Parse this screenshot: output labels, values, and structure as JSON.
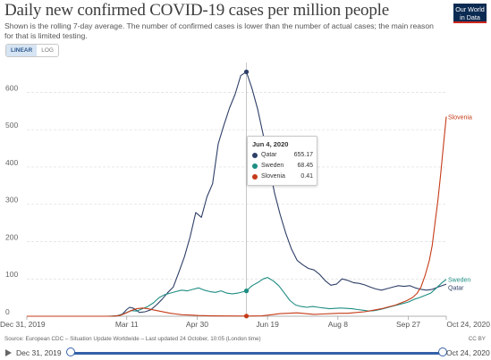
{
  "header": {
    "title": "Daily new confirmed COVID-19 cases per million people",
    "subtitle": "Shown is the rolling 7-day average. The number of confirmed cases is lower than the number of actual cases; the main reason for that is limited testing.",
    "logo_line1": "Our World",
    "logo_line2": "in Data"
  },
  "scale_toggle": {
    "linear": "LINEAR",
    "log": "LOG",
    "selected": "LINEAR"
  },
  "tooltip": {
    "date": "Jun 4, 2020",
    "rows": [
      {
        "name": "Qatar",
        "value": "655.17",
        "color": "#2e3f67"
      },
      {
        "name": "Sweden",
        "value": "68.45",
        "color": "#1d8d82"
      },
      {
        "name": "Slovenia",
        "value": "0.41",
        "color": "#c53b18"
      }
    ]
  },
  "footer": {
    "source": "Source: European CDC – Situation Update Worldwide – Last updated 24 October, 10:05 (London time)",
    "license": "CC BY"
  },
  "timeline": {
    "start_label": "Dec 31, 2019",
    "end_label": "Oct 24, 2020"
  },
  "chart_data": {
    "type": "line",
    "y_ticks": [
      0,
      100,
      200,
      300,
      400,
      500,
      600
    ],
    "ylim": [
      0,
      680
    ],
    "xlim": [
      "2019-12-31",
      "2020-10-24"
    ],
    "x_ticks": [
      {
        "date": "2019-12-31",
        "label": "Dec 31, 2019"
      },
      {
        "date": "2020-03-11",
        "label": "Mar 11"
      },
      {
        "date": "2020-04-30",
        "label": "Apr 30"
      },
      {
        "date": "2020-06-19",
        "label": "Jun 19"
      },
      {
        "date": "2020-08-08",
        "label": "Aug 8"
      },
      {
        "date": "2020-09-27",
        "label": "Sep 27"
      },
      {
        "date": "2020-10-24",
        "label": "Oct 24, 2020"
      }
    ],
    "grid": "horizontal-dashed",
    "highlight_date": "2020-06-04",
    "series": [
      {
        "name": "Qatar",
        "color": "#2e3f67",
        "end_label": "Qatar",
        "points": [
          [
            "2019-12-31",
            0
          ],
          [
            "2020-02-29",
            0
          ],
          [
            "2020-03-04",
            1
          ],
          [
            "2020-03-08",
            6
          ],
          [
            "2020-03-11",
            18
          ],
          [
            "2020-03-13",
            24
          ],
          [
            "2020-03-16",
            21
          ],
          [
            "2020-03-20",
            10
          ],
          [
            "2020-03-24",
            12
          ],
          [
            "2020-03-28",
            17
          ],
          [
            "2020-04-01",
            30
          ],
          [
            "2020-04-05",
            45
          ],
          [
            "2020-04-09",
            63
          ],
          [
            "2020-04-13",
            78
          ],
          [
            "2020-04-17",
            118
          ],
          [
            "2020-04-21",
            160
          ],
          [
            "2020-04-25",
            213
          ],
          [
            "2020-04-29",
            278
          ],
          [
            "2020-05-03",
            265
          ],
          [
            "2020-05-07",
            320
          ],
          [
            "2020-05-11",
            355
          ],
          [
            "2020-05-15",
            462
          ],
          [
            "2020-05-19",
            512
          ],
          [
            "2020-05-23",
            558
          ],
          [
            "2020-05-27",
            595
          ],
          [
            "2020-05-31",
            645
          ],
          [
            "2020-06-04",
            655
          ],
          [
            "2020-06-08",
            610
          ],
          [
            "2020-06-12",
            555
          ],
          [
            "2020-06-16",
            485
          ],
          [
            "2020-06-20",
            405
          ],
          [
            "2020-06-24",
            330
          ],
          [
            "2020-06-28",
            272
          ],
          [
            "2020-07-02",
            222
          ],
          [
            "2020-07-06",
            180
          ],
          [
            "2020-07-10",
            150
          ],
          [
            "2020-07-14",
            138
          ],
          [
            "2020-07-18",
            128
          ],
          [
            "2020-07-22",
            124
          ],
          [
            "2020-07-26",
            112
          ],
          [
            "2020-07-30",
            95
          ],
          [
            "2020-08-03",
            83
          ],
          [
            "2020-08-07",
            86
          ],
          [
            "2020-08-11",
            100
          ],
          [
            "2020-08-15",
            96
          ],
          [
            "2020-08-19",
            90
          ],
          [
            "2020-08-23",
            88
          ],
          [
            "2020-08-27",
            84
          ],
          [
            "2020-08-31",
            78
          ],
          [
            "2020-09-04",
            73
          ],
          [
            "2020-09-08",
            70
          ],
          [
            "2020-09-12",
            74
          ],
          [
            "2020-09-16",
            78
          ],
          [
            "2020-09-20",
            82
          ],
          [
            "2020-09-24",
            80
          ],
          [
            "2020-09-28",
            82
          ],
          [
            "2020-10-02",
            76
          ],
          [
            "2020-10-06",
            72
          ],
          [
            "2020-10-10",
            70
          ],
          [
            "2020-10-14",
            72
          ],
          [
            "2020-10-18",
            78
          ],
          [
            "2020-10-24",
            86
          ]
        ]
      },
      {
        "name": "Sweden",
        "color": "#1d8d82",
        "end_label": "Sweden",
        "points": [
          [
            "2019-12-31",
            0
          ],
          [
            "2020-02-26",
            0
          ],
          [
            "2020-03-04",
            1
          ],
          [
            "2020-03-08",
            5
          ],
          [
            "2020-03-11",
            10
          ],
          [
            "2020-03-14",
            15
          ],
          [
            "2020-03-18",
            14
          ],
          [
            "2020-03-22",
            20
          ],
          [
            "2020-03-26",
            26
          ],
          [
            "2020-03-30",
            36
          ],
          [
            "2020-04-03",
            50
          ],
          [
            "2020-04-07",
            58
          ],
          [
            "2020-04-11",
            62
          ],
          [
            "2020-04-15",
            66
          ],
          [
            "2020-04-19",
            70
          ],
          [
            "2020-04-23",
            68
          ],
          [
            "2020-04-27",
            72
          ],
          [
            "2020-05-01",
            76
          ],
          [
            "2020-05-05",
            70
          ],
          [
            "2020-05-09",
            66
          ],
          [
            "2020-05-13",
            64
          ],
          [
            "2020-05-17",
            68
          ],
          [
            "2020-05-21",
            62
          ],
          [
            "2020-05-25",
            60
          ],
          [
            "2020-05-29",
            62
          ],
          [
            "2020-06-04",
            68
          ],
          [
            "2020-06-08",
            82
          ],
          [
            "2020-06-12",
            90
          ],
          [
            "2020-06-16",
            100
          ],
          [
            "2020-06-19",
            104
          ],
          [
            "2020-06-23",
            95
          ],
          [
            "2020-06-27",
            82
          ],
          [
            "2020-07-01",
            62
          ],
          [
            "2020-07-05",
            42
          ],
          [
            "2020-07-09",
            30
          ],
          [
            "2020-07-13",
            26
          ],
          [
            "2020-07-17",
            24
          ],
          [
            "2020-07-21",
            26
          ],
          [
            "2020-07-25",
            24
          ],
          [
            "2020-07-29",
            22
          ],
          [
            "2020-08-02",
            20
          ],
          [
            "2020-08-06",
            21
          ],
          [
            "2020-08-10",
            22
          ],
          [
            "2020-08-14",
            21
          ],
          [
            "2020-08-18",
            20
          ],
          [
            "2020-08-22",
            18
          ],
          [
            "2020-08-26",
            16
          ],
          [
            "2020-08-30",
            14
          ],
          [
            "2020-09-03",
            15
          ],
          [
            "2020-09-07",
            18
          ],
          [
            "2020-09-11",
            22
          ],
          [
            "2020-09-15",
            26
          ],
          [
            "2020-09-19",
            30
          ],
          [
            "2020-09-23",
            34
          ],
          [
            "2020-09-27",
            38
          ],
          [
            "2020-10-01",
            45
          ],
          [
            "2020-10-05",
            50
          ],
          [
            "2020-10-09",
            56
          ],
          [
            "2020-10-13",
            62
          ],
          [
            "2020-10-17",
            76
          ],
          [
            "2020-10-21",
            90
          ],
          [
            "2020-10-24",
            99
          ]
        ]
      },
      {
        "name": "Slovenia",
        "color": "#c53b18",
        "end_label": "Slovenia",
        "points": [
          [
            "2019-12-31",
            0
          ],
          [
            "2020-03-01",
            0
          ],
          [
            "2020-03-06",
            2
          ],
          [
            "2020-03-10",
            8
          ],
          [
            "2020-03-14",
            15
          ],
          [
            "2020-03-18",
            20
          ],
          [
            "2020-03-22",
            22
          ],
          [
            "2020-03-26",
            20
          ],
          [
            "2020-03-30",
            17
          ],
          [
            "2020-04-03",
            14
          ],
          [
            "2020-04-07",
            11
          ],
          [
            "2020-04-11",
            8
          ],
          [
            "2020-04-15",
            6
          ],
          [
            "2020-04-19",
            4
          ],
          [
            "2020-04-25",
            3
          ],
          [
            "2020-05-01",
            2
          ],
          [
            "2020-05-10",
            1
          ],
          [
            "2020-05-20",
            0.6
          ],
          [
            "2020-06-04",
            0.41
          ],
          [
            "2020-06-15",
            1
          ],
          [
            "2020-06-22",
            4
          ],
          [
            "2020-06-28",
            7
          ],
          [
            "2020-07-04",
            8
          ],
          [
            "2020-07-10",
            9
          ],
          [
            "2020-07-16",
            7
          ],
          [
            "2020-07-22",
            5
          ],
          [
            "2020-07-28",
            6
          ],
          [
            "2020-08-03",
            7
          ],
          [
            "2020-08-09",
            8
          ],
          [
            "2020-08-15",
            8
          ],
          [
            "2020-08-21",
            10
          ],
          [
            "2020-08-27",
            12
          ],
          [
            "2020-09-02",
            16
          ],
          [
            "2020-09-08",
            20
          ],
          [
            "2020-09-14",
            26
          ],
          [
            "2020-09-18",
            30
          ],
          [
            "2020-09-22",
            36
          ],
          [
            "2020-09-26",
            42
          ],
          [
            "2020-09-30",
            50
          ],
          [
            "2020-10-03",
            60
          ],
          [
            "2020-10-06",
            78
          ],
          [
            "2020-10-09",
            110
          ],
          [
            "2020-10-12",
            150
          ],
          [
            "2020-10-14",
            190
          ],
          [
            "2020-10-16",
            250
          ],
          [
            "2020-10-18",
            310
          ],
          [
            "2020-10-20",
            380
          ],
          [
            "2020-10-22",
            460
          ],
          [
            "2020-10-24",
            535
          ]
        ]
      }
    ]
  }
}
